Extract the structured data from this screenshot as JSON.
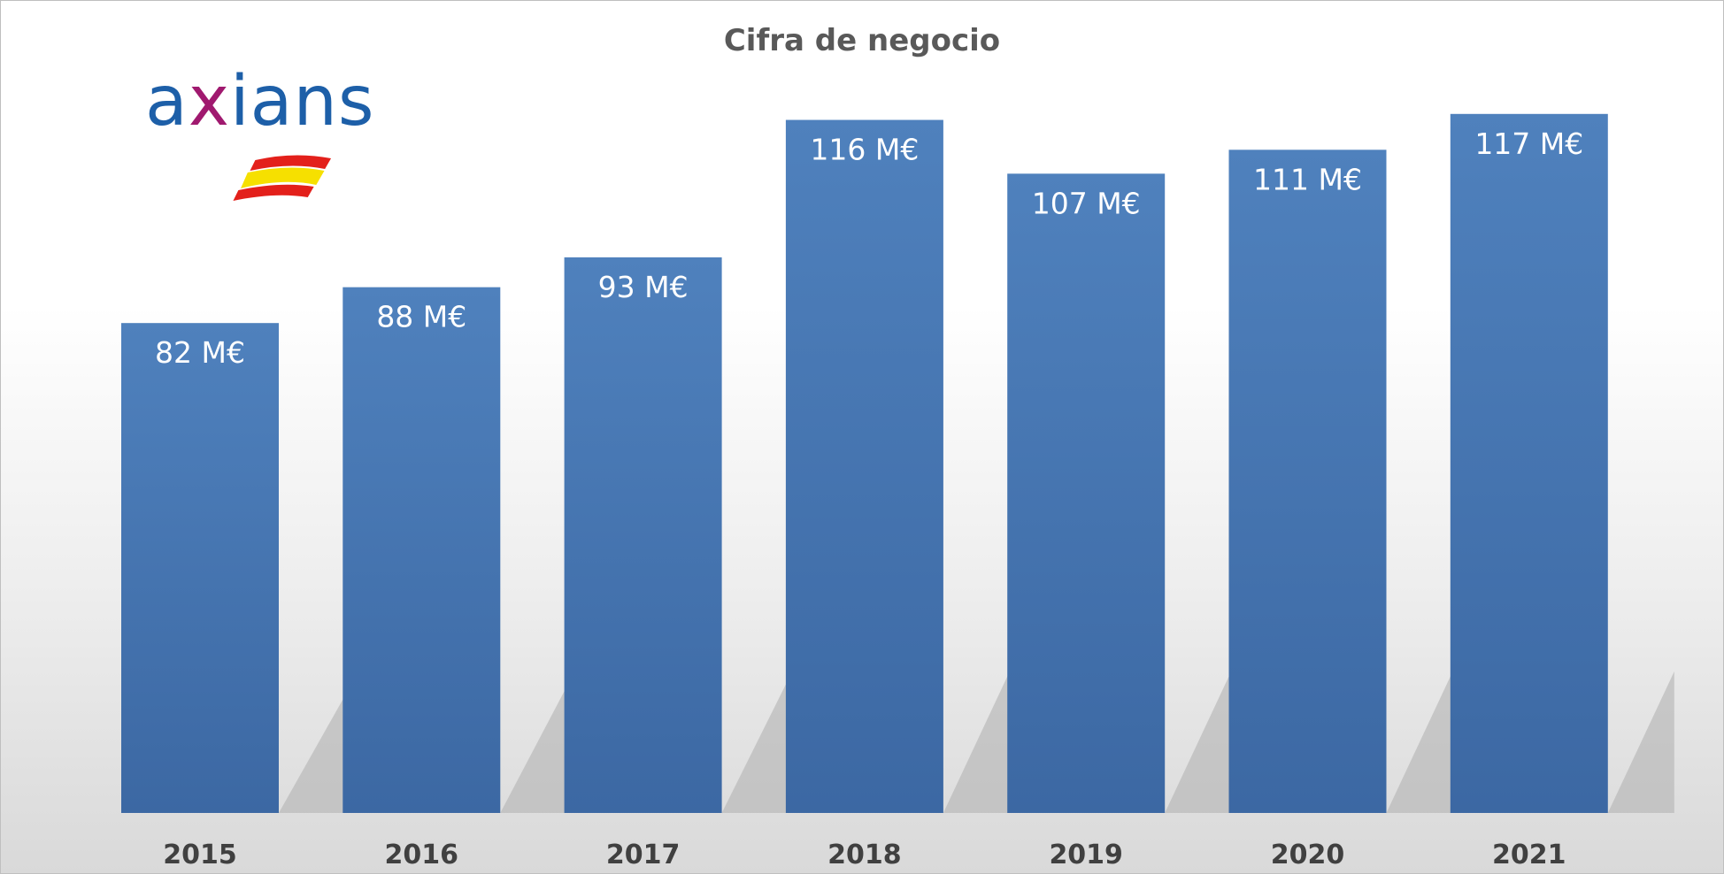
{
  "chart_data": {
    "type": "bar",
    "title": "Cifra de negocio",
    "categories": [
      "2015",
      "2016",
      "2017",
      "2018",
      "2019",
      "2020",
      "2021"
    ],
    "values": [
      82,
      88,
      93,
      116,
      107,
      111,
      117
    ],
    "data_labels": [
      "82 M€",
      "88 M€",
      "93 M€",
      "116 M€",
      "107 M€",
      "111 M€",
      "117 M€"
    ],
    "unit": "M€",
    "xlabel": "",
    "ylabel": "",
    "ylim": [
      0,
      130
    ],
    "grid": false,
    "legend": "none",
    "bar_color": "#4a7ab8"
  },
  "logo": {
    "wordmark": "axians",
    "colors": {
      "blue": "#1d5fa8",
      "magenta": "#a0196f"
    },
    "flag_colors": {
      "red": "#e3201b",
      "yellow": "#f6e000"
    }
  }
}
